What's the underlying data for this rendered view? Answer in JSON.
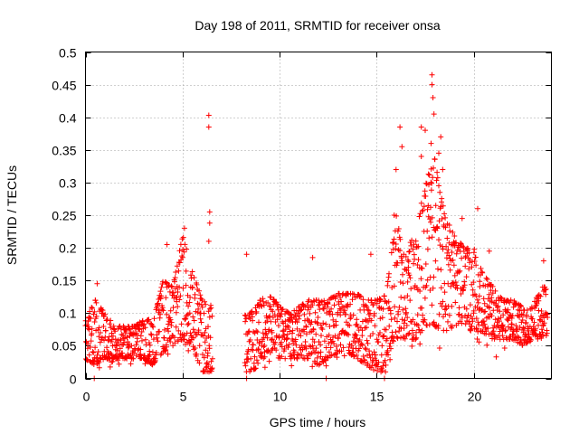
{
  "chart_data": {
    "type": "scatter",
    "title": "Day 198 of 2011, SRMTID for receiver onsa",
    "xlabel": "GPS time / hours",
    "ylabel": "SRMTID / TECUs",
    "xlim": [
      0,
      24
    ],
    "ylim": [
      0,
      0.5
    ],
    "xticks": [
      0,
      5,
      10,
      15,
      20
    ],
    "xtick_labels": [
      "0",
      "5",
      "10",
      "15",
      "20"
    ],
    "yticks": [
      0,
      0.05,
      0.1,
      0.15,
      0.2,
      0.25,
      0.3,
      0.35,
      0.4,
      0.45,
      0.5
    ],
    "ytick_labels": [
      "0",
      "0.05",
      "0.1",
      "0.15",
      "0.2",
      "0.25",
      "0.3",
      "0.35",
      "0.4",
      "0.45",
      "0.5"
    ],
    "grid": true,
    "marker": "+",
    "color": "#ff0000",
    "envelope_note": "approximate cloud of SRMTID points read from the figure, by hour: [hour, typical low, typical high]",
    "envelope": [
      [
        0.0,
        0.03,
        0.09
      ],
      [
        0.5,
        0.02,
        0.12
      ],
      [
        1.0,
        0.03,
        0.1
      ],
      [
        1.5,
        0.03,
        0.08
      ],
      [
        2.0,
        0.03,
        0.08
      ],
      [
        2.5,
        0.03,
        0.08
      ],
      [
        3.0,
        0.03,
        0.09
      ],
      [
        3.5,
        0.02,
        0.09
      ],
      [
        4.0,
        0.04,
        0.15
      ],
      [
        4.5,
        0.05,
        0.14
      ],
      [
        5.0,
        0.06,
        0.22
      ],
      [
        5.5,
        0.05,
        0.17
      ],
      [
        6.0,
        0.01,
        0.12
      ],
      [
        8.5,
        0.01,
        0.1
      ],
      [
        9.0,
        0.02,
        0.12
      ],
      [
        9.5,
        0.04,
        0.13
      ],
      [
        10.0,
        0.03,
        0.11
      ],
      [
        10.5,
        0.03,
        0.1
      ],
      [
        11.0,
        0.03,
        0.11
      ],
      [
        11.5,
        0.03,
        0.12
      ],
      [
        12.0,
        0.02,
        0.12
      ],
      [
        12.5,
        0.03,
        0.12
      ],
      [
        13.0,
        0.04,
        0.13
      ],
      [
        13.5,
        0.04,
        0.13
      ],
      [
        14.0,
        0.03,
        0.13
      ],
      [
        14.5,
        0.02,
        0.12
      ],
      [
        15.0,
        0.01,
        0.12
      ],
      [
        15.5,
        0.01,
        0.13
      ],
      [
        16.0,
        0.06,
        0.25
      ],
      [
        16.5,
        0.06,
        0.2
      ],
      [
        17.0,
        0.06,
        0.22
      ],
      [
        17.5,
        0.08,
        0.3
      ],
      [
        18.0,
        0.08,
        0.34
      ],
      [
        18.5,
        0.07,
        0.25
      ],
      [
        19.0,
        0.08,
        0.22
      ],
      [
        19.5,
        0.08,
        0.2
      ],
      [
        20.0,
        0.07,
        0.2
      ],
      [
        20.5,
        0.07,
        0.16
      ],
      [
        21.0,
        0.06,
        0.14
      ],
      [
        21.5,
        0.06,
        0.12
      ],
      [
        22.0,
        0.06,
        0.12
      ],
      [
        22.5,
        0.05,
        0.11
      ],
      [
        23.0,
        0.06,
        0.11
      ],
      [
        23.5,
        0.06,
        0.14
      ]
    ],
    "notable_points": [
      {
        "x": 0.45,
        "y": 0.0
      },
      {
        "x": 0.6,
        "y": 0.145
      },
      {
        "x": 4.2,
        "y": 0.205
      },
      {
        "x": 5.1,
        "y": 0.23
      },
      {
        "x": 6.35,
        "y": 0.403
      },
      {
        "x": 6.35,
        "y": 0.385
      },
      {
        "x": 6.4,
        "y": 0.255
      },
      {
        "x": 6.4,
        "y": 0.238
      },
      {
        "x": 6.35,
        "y": 0.21
      },
      {
        "x": 8.3,
        "y": 0.19
      },
      {
        "x": 8.3,
        "y": 0.0
      },
      {
        "x": 11.7,
        "y": 0.185
      },
      {
        "x": 14.7,
        "y": 0.19
      },
      {
        "x": 15.9,
        "y": 0.25
      },
      {
        "x": 16.2,
        "y": 0.385
      },
      {
        "x": 16.3,
        "y": 0.355
      },
      {
        "x": 16.0,
        "y": 0.32
      },
      {
        "x": 17.3,
        "y": 0.385
      },
      {
        "x": 17.3,
        "y": 0.34
      },
      {
        "x": 17.5,
        "y": 0.38
      },
      {
        "x": 17.85,
        "y": 0.465
      },
      {
        "x": 17.85,
        "y": 0.45
      },
      {
        "x": 17.9,
        "y": 0.43
      },
      {
        "x": 17.95,
        "y": 0.405
      },
      {
        "x": 17.8,
        "y": 0.36
      },
      {
        "x": 18.3,
        "y": 0.37
      },
      {
        "x": 18.2,
        "y": 0.345
      },
      {
        "x": 18.4,
        "y": 0.32
      },
      {
        "x": 20.2,
        "y": 0.26
      },
      {
        "x": 19.4,
        "y": 0.245
      },
      {
        "x": 20.8,
        "y": 0.195
      },
      {
        "x": 23.6,
        "y": 0.18
      },
      {
        "x": 15.4,
        "y": 0.0
      },
      {
        "x": 12.4,
        "y": 0.0
      }
    ],
    "gaps": [
      [
        6.6,
        8.2
      ]
    ]
  }
}
